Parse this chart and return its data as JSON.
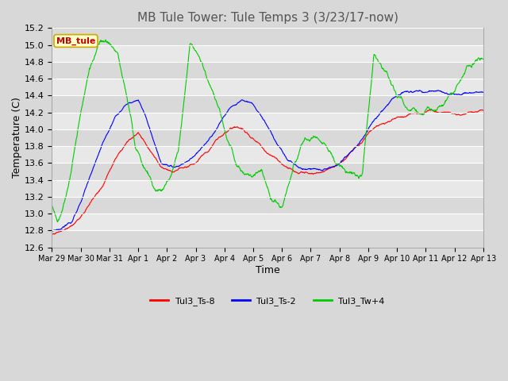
{
  "title": "MB Tule Tower: Tule Temps 3 (3/23/17-now)",
  "xlabel": "Time",
  "ylabel": "Temperature (C)",
  "ylim": [
    12.6,
    15.2
  ],
  "yticks": [
    12.6,
    12.8,
    13.0,
    13.2,
    13.4,
    13.6,
    13.8,
    14.0,
    14.2,
    14.4,
    14.6,
    14.8,
    15.0,
    15.2
  ],
  "xtick_labels": [
    "Mar 29",
    "Mar 30",
    "Mar 31",
    "Apr 1",
    "Apr 2",
    "Apr 3",
    "Apr 4",
    "Apr 5",
    "Apr 6",
    "Apr 7",
    "Apr 8",
    "Apr 9",
    "Apr 10",
    "Apr 11",
    "Apr 12",
    "Apr 13"
  ],
  "legend_labels": [
    "Tul3_Ts-8",
    "Tul3_Ts-2",
    "Tul3_Tw+4"
  ],
  "legend_colors": [
    "#ff0000",
    "#0000ff",
    "#00cc00"
  ],
  "line_colors": [
    "#ff0000",
    "#0000ff",
    "#00cc00"
  ],
  "background_color": "#d8d8d8",
  "plot_bg_color": "#e8e8e8",
  "grid_color": "#ffffff",
  "title_fontsize": 11,
  "axis_fontsize": 9,
  "tick_fontsize": 8,
  "legend_box_color": "#ffffcc",
  "legend_box_edge": "#ccaa00",
  "legend_box_label": "MB_tule",
  "legend_box_text_color": "#cc0000",
  "n_points": 1440
}
